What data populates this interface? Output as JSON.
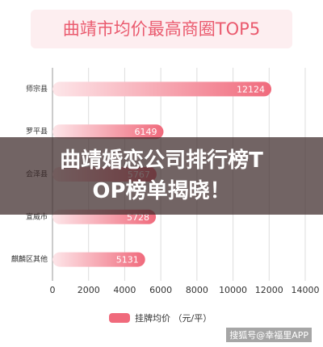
{
  "chart_data": {
    "type": "bar",
    "orientation": "horizontal",
    "title": "曲靖市均价最高商圈TOP5",
    "categories": [
      "师宗县",
      "罗平县",
      "会泽县",
      "宣威市",
      "麒麟区其他"
    ],
    "series": [
      {
        "name": "挂牌均价 （元/平）",
        "color": "#f06a7c",
        "values": [
          12124,
          6149,
          5767,
          5728,
          5131
        ]
      }
    ],
    "xlim": [
      0,
      14000
    ],
    "xticks": [
      0,
      2000,
      4000,
      6000,
      8000,
      10000,
      12000,
      14000
    ],
    "grid": true
  },
  "overlay": {
    "banner": "曲靖婚恋公司排行榜TOP榜单揭晓！",
    "watermark": "搜狐号@幸福里APP"
  }
}
